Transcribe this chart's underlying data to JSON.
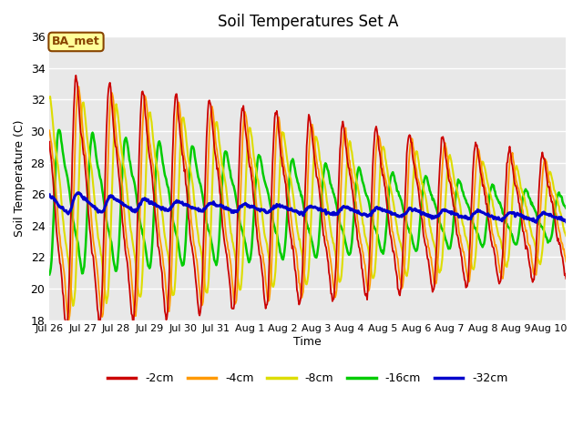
{
  "title": "Soil Temperatures Set A",
  "xlabel": "Time",
  "ylabel": "Soil Temperature (C)",
  "ylim": [
    18,
    36
  ],
  "yticks": [
    18,
    20,
    22,
    24,
    26,
    28,
    30,
    32,
    34,
    36
  ],
  "colors": {
    "-2cm": "#cc0000",
    "-4cm": "#ff9900",
    "-8cm": "#dddd00",
    "-16cm": "#00cc00",
    "-32cm": "#0000cc"
  },
  "label_text": "BA_met",
  "label_bg": "#ffff99",
  "label_border": "#884400",
  "background_color": "#e8e8e8",
  "tick_labels": [
    "Jul 26",
    "Jul 27",
    "Jul 28",
    "Jul 29",
    "Jul 30",
    "Jul 31",
    "Aug 1",
    "Aug 2",
    "Aug 3",
    "Aug 4",
    "Aug 5",
    "Aug 6",
    "Aug 7",
    "Aug 8",
    "Aug 9",
    "Aug 10"
  ],
  "n_days": 15.5,
  "samples_per_day": 48
}
